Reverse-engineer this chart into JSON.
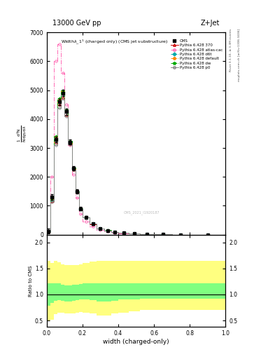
{
  "title_top": "13000 GeV pp",
  "title_right": "Z+Jet",
  "plot_title": "Width$\\lambda$_1$^1$ (charged only) (CMS jet substructure)",
  "xlabel": "width (charged-only)",
  "right_label_top": "Rivet 3.1.10, ≥ 3.3M events",
  "right_label_bottom": "mcplots.cern.ch [arXiv:1306.3436]",
  "watermark": "CMS_2021_I1920187",
  "xlim": [
    0.0,
    1.0
  ],
  "ylim_main": [
    0,
    7000
  ],
  "yticks_main": [
    0,
    1000,
    2000,
    3000,
    4000,
    5000,
    6000,
    7000
  ],
  "x_bins": [
    0.0,
    0.02,
    0.04,
    0.06,
    0.08,
    0.1,
    0.12,
    0.14,
    0.16,
    0.18,
    0.2,
    0.24,
    0.28,
    0.32,
    0.36,
    0.4,
    0.46,
    0.52,
    0.6,
    0.7,
    0.8,
    1.0
  ],
  "cms_data": [
    120,
    1300,
    3300,
    4600,
    4900,
    4250,
    3200,
    2300,
    1500,
    900,
    600,
    370,
    210,
    145,
    95,
    60,
    38,
    22,
    10,
    4,
    1.5
  ],
  "cms_errors": [
    80,
    90,
    100,
    110,
    110,
    100,
    90,
    80,
    70,
    60,
    50,
    35,
    25,
    20,
    15,
    12,
    8,
    6,
    4,
    2,
    1
  ],
  "pythia_370": [
    100,
    1150,
    3200,
    4500,
    4750,
    4150,
    3150,
    2260,
    1480,
    890,
    590,
    368,
    210,
    142,
    95,
    61,
    37,
    23,
    10.5,
    4.2,
    1.7
  ],
  "pythia_atlas_cac": [
    110,
    2000,
    6000,
    6600,
    5600,
    4500,
    3100,
    2080,
    1280,
    730,
    460,
    275,
    158,
    108,
    73,
    48,
    30,
    18,
    8.5,
    3.2,
    1.3
  ],
  "pythia_d6t": [
    105,
    1200,
    3350,
    4650,
    4950,
    4300,
    3220,
    2290,
    1495,
    900,
    596,
    374,
    218,
    148,
    99,
    64,
    39,
    24,
    11,
    4.5,
    1.85
  ],
  "pythia_default": [
    95,
    1220,
    3380,
    4680,
    4970,
    4320,
    3230,
    2300,
    1500,
    905,
    598,
    376,
    219,
    149,
    100,
    65,
    40,
    25,
    11.5,
    4.6,
    1.9
  ],
  "pythia_dw": [
    102,
    1250,
    3420,
    4720,
    5000,
    4340,
    3250,
    2315,
    1510,
    912,
    607,
    382,
    223,
    152,
    102,
    66,
    41,
    26,
    12,
    4.8,
    1.95
  ],
  "pythia_p0": [
    95,
    1130,
    3100,
    4380,
    4700,
    4100,
    3130,
    2250,
    1475,
    888,
    588,
    370,
    215,
    145,
    98,
    63,
    38.5,
    23.5,
    11,
    4.3,
    1.8
  ],
  "color_370": "#cc0000",
  "color_atlas_cac": "#ff69b4",
  "color_d6t": "#00aaaa",
  "color_default": "#ff8800",
  "color_dw": "#00aa00",
  "color_p0": "#888888",
  "color_cms": "#000000",
  "yellow_lo": [
    0.5,
    0.52,
    0.62,
    0.65,
    0.65,
    0.63,
    0.63,
    0.64,
    0.65,
    0.66,
    0.65,
    0.63,
    0.6,
    0.6,
    0.63,
    0.65,
    0.68,
    0.7,
    0.7,
    0.7,
    0.7
  ],
  "yellow_hi": [
    1.65,
    1.6,
    1.65,
    1.62,
    1.58,
    1.57,
    1.57,
    1.57,
    1.57,
    1.58,
    1.6,
    1.63,
    1.65,
    1.65,
    1.65,
    1.65,
    1.65,
    1.65,
    1.65,
    1.65,
    1.65
  ],
  "green_lo": [
    0.78,
    0.84,
    0.88,
    0.89,
    0.88,
    0.87,
    0.87,
    0.88,
    0.89,
    0.9,
    0.9,
    0.89,
    0.87,
    0.87,
    0.88,
    0.9,
    0.91,
    0.92,
    0.92,
    0.92,
    0.92
  ],
  "green_hi": [
    1.22,
    1.22,
    1.22,
    1.21,
    1.19,
    1.18,
    1.18,
    1.19,
    1.19,
    1.2,
    1.21,
    1.22,
    1.22,
    1.22,
    1.22,
    1.22,
    1.22,
    1.22,
    1.22,
    1.22,
    1.22
  ]
}
